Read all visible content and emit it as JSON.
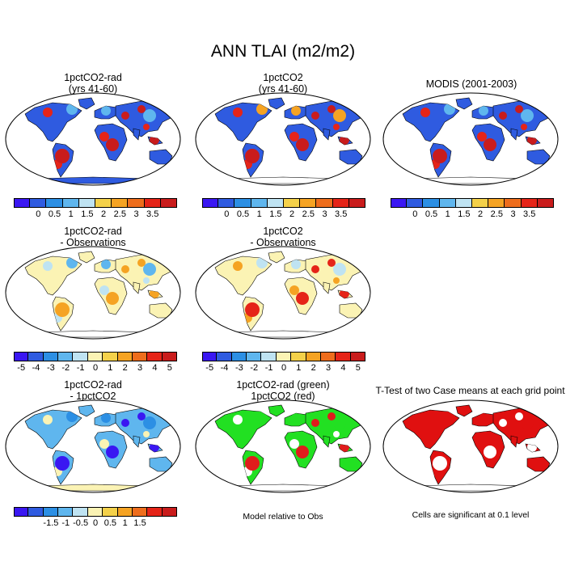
{
  "title": "ANN TLAI (m2/m2)",
  "panels": [
    {
      "line1": "1pctCO2-rad",
      "line2": "(yrs 41-60)"
    },
    {
      "line1": "1pctCO2",
      "line2": "(yrs 41-60)"
    },
    {
      "line1": "MODIS (2001-2003)",
      "line2": ""
    },
    {
      "line1": "1pctCO2-rad",
      "line2": "- Observations"
    },
    {
      "line1": "1pctCO2",
      "line2": "- Observations"
    },
    {
      "line1": "1pctCO2-rad",
      "line2": "- 1pctCO2"
    },
    {
      "line1": "1pctCO2-rad (green)",
      "line2": "1pctCO2 (red)"
    },
    {
      "line1": "T-Test of two Case means at each grid point",
      "line2": ""
    }
  ],
  "colorbars": {
    "abs": {
      "colors": [
        "#3a17f2",
        "#2f5be0",
        "#2c8fe4",
        "#5fb6ee",
        "#bfe3f2",
        "#f4d14a",
        "#f5a323",
        "#ee6d1c",
        "#e52418",
        "#c91c1c"
      ],
      "ticks": [
        "0",
        "0.5",
        "1",
        "1.5",
        "2",
        "2.5",
        "3",
        "3.5"
      ]
    },
    "diff": {
      "colors": [
        "#3a17f2",
        "#2f5be0",
        "#2c8fe4",
        "#5fb6ee",
        "#bfe3f2",
        "#fbf3b4",
        "#f4d14a",
        "#f5a323",
        "#ee6d1c",
        "#e52418",
        "#c91c1c"
      ],
      "ticks": [
        "-5",
        "-4",
        "-3",
        "-2",
        "-1",
        "0",
        "1",
        "2",
        "3",
        "4",
        "5"
      ]
    },
    "diff2": {
      "colors": [
        "#3a17f2",
        "#2f5be0",
        "#2c8fe4",
        "#5fb6ee",
        "#bfe3f2",
        "#fbf3b4",
        "#f4d14a",
        "#f5a323",
        "#ee6d1c",
        "#e52418",
        "#c91c1c"
      ],
      "ticks": [
        "-1.5",
        "-1",
        "-0.5",
        "0",
        "0.5",
        "1",
        "1.5"
      ]
    }
  },
  "notes": {
    "model_rel": "Model relative to Obs",
    "significance": "Cells are significant at 0.1 level"
  },
  "map_palettes": {
    "p1": {
      "ocean": "#ffffff",
      "land": "#2f5be0",
      "veg1": "#c91c1c",
      "veg2": "#e52418",
      "veg3": "#5fb6ee",
      "ice": "#2f5be0"
    },
    "p2": {
      "ocean": "#ffffff",
      "land": "#2f5be0",
      "veg1": "#c91c1c",
      "veg2": "#e52418",
      "veg3": "#f5a323",
      "ice": "#ffffff"
    },
    "p3": {
      "ocean": "#ffffff",
      "land": "#2f5be0",
      "veg1": "#c91c1c",
      "veg2": "#e52418",
      "veg3": "#5fb6ee",
      "ice": "#ffffff"
    },
    "p4": {
      "ocean": "#ffffff",
      "land": "#fbf3b4",
      "veg1": "#f5a323",
      "veg2": "#bfe3f2",
      "veg3": "#5fb6ee",
      "ice": "#ffffff"
    },
    "p5": {
      "ocean": "#ffffff",
      "land": "#fbf3b4",
      "veg1": "#e52418",
      "veg2": "#f5a323",
      "veg3": "#bfe3f2",
      "ice": "#ffffff"
    },
    "p6": {
      "ocean": "#ffffff",
      "land": "#5fb6ee",
      "veg1": "#3a17f2",
      "veg2": "#fbf3b4",
      "veg3": "#2c8fe4",
      "ice": "#fbf3b4"
    },
    "p7": {
      "ocean": "#ffffff",
      "land": "#22e022",
      "veg1": "#e01c1c",
      "veg2": "#ffffff",
      "veg3": "#22e022",
      "ice": "#ffffff"
    },
    "p8": {
      "ocean": "#ffffff",
      "land": "#e01010",
      "veg1": "#ffffff",
      "veg2": "#e01010",
      "veg3": "#e01010",
      "ice": "#ffffff"
    }
  }
}
